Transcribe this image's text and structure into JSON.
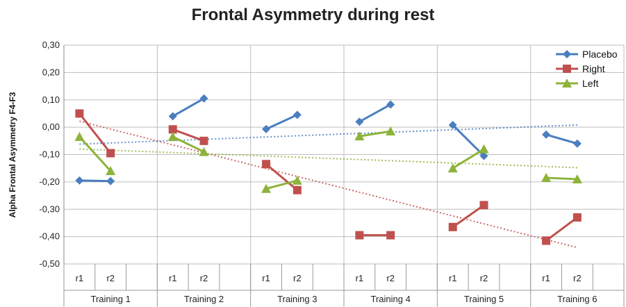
{
  "chart_data": {
    "type": "line",
    "title": "Frontal Asymmetry during rest",
    "ylabel": "Alpha Frontal Asymmetry F4-F3",
    "xlabel": "",
    "ylim": [
      -0.5,
      0.3
    ],
    "yticks": [
      0.3,
      0.2,
      0.1,
      0.0,
      -0.1,
      -0.2,
      -0.3,
      -0.4,
      -0.5
    ],
    "ytick_labels": [
      "0,30",
      "0,20",
      "0,10",
      "0,00",
      "-0,10",
      "-0,20",
      "-0,30",
      "-0,40",
      "-0,50"
    ],
    "grid": true,
    "legend_position": "top-right",
    "groups": [
      {
        "label": "Training 1",
        "sessions": [
          "r1",
          "r2"
        ]
      },
      {
        "label": "Training 2",
        "sessions": [
          "r1",
          "r2"
        ]
      },
      {
        "label": "Training 3",
        "sessions": [
          "r1",
          "r2"
        ]
      },
      {
        "label": "Training 4",
        "sessions": [
          "r1",
          "r2"
        ]
      },
      {
        "label": "Training 5",
        "sessions": [
          "r1",
          "r2"
        ]
      },
      {
        "label": "Training 6",
        "sessions": [
          "r1",
          "r2"
        ]
      }
    ],
    "series": [
      {
        "name": "Placebo",
        "color": "#4a7ebf",
        "marker": "diamond",
        "values": [
          [
            -0.195,
            -0.197
          ],
          [
            0.04,
            0.105
          ],
          [
            -0.007,
            0.045
          ],
          [
            0.02,
            0.083
          ],
          [
            0.008,
            -0.105
          ],
          [
            -0.027,
            -0.06
          ]
        ],
        "trend": [
          -0.062,
          0.008
        ]
      },
      {
        "name": "Right",
        "color": "#c0504d",
        "marker": "square",
        "values": [
          [
            0.05,
            -0.095
          ],
          [
            -0.008,
            -0.05
          ],
          [
            -0.135,
            -0.23
          ],
          [
            -0.395,
            -0.395
          ],
          [
            -0.365,
            -0.285
          ],
          [
            -0.415,
            -0.33
          ]
        ],
        "trend": [
          0.022,
          -0.44
        ]
      },
      {
        "name": "Left",
        "color": "#8db33a",
        "marker": "triangle",
        "values": [
          [
            -0.035,
            -0.16
          ],
          [
            -0.035,
            -0.09
          ],
          [
            -0.225,
            -0.195
          ],
          [
            -0.033,
            -0.015
          ],
          [
            -0.15,
            -0.08
          ],
          [
            -0.185,
            -0.19
          ]
        ],
        "trend": [
          -0.08,
          -0.148
        ]
      }
    ]
  }
}
